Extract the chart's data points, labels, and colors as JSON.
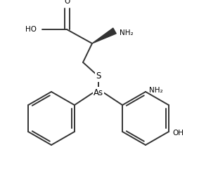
{
  "background_color": "#ffffff",
  "line_color": "#333333",
  "text_color": "#000000",
  "linewidth": 1.4,
  "fontsize": 7.5,
  "figsize": [
    2.83,
    2.57
  ],
  "dpi": 100,
  "xlim": [
    0,
    283
  ],
  "ylim": [
    0,
    257
  ]
}
